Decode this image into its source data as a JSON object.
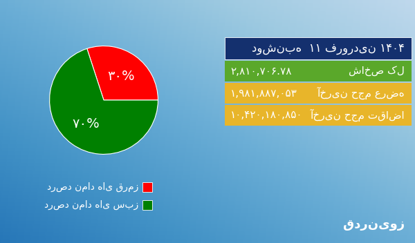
{
  "chart_data": {
    "type": "pie",
    "categories": [
      "درصد نماد های قرمز",
      "درصد نماد های سبز"
    ],
    "values": [
      30,
      70
    ],
    "value_labels": [
      "۳۰%",
      "۷۰%"
    ],
    "colors": [
      "#ff0000",
      "#008000"
    ],
    "legend": "lower center",
    "data_labels": true
  },
  "info": {
    "header": "دوشنبه  ۱۱ فروردین ۱۴۰۴",
    "rows": [
      [
        "شاخص کل",
        "۲,۸۱۰,۷۰۶.۷۸"
      ],
      [
        "آخرین حجم عرضه",
        "۱,۹۸۱,۸۸۷,۰۵۳"
      ],
      [
        "آخرین حجم تقاضا",
        "۱۰,۴۲۰,۱۸۰,۸۵۰"
      ]
    ]
  },
  "brand": "قدرنیوز"
}
